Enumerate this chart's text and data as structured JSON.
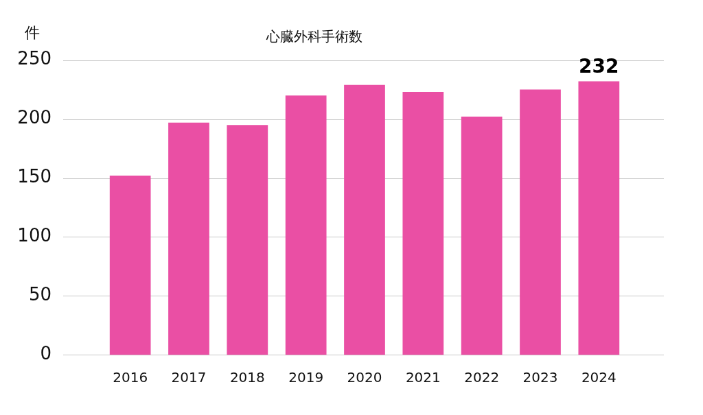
{
  "chart_data": {
    "type": "bar",
    "title": "心臓外科手術数",
    "ylabel": "件",
    "categories": [
      "2016",
      "2017",
      "2018",
      "2019",
      "2020",
      "2021",
      "2022",
      "2023",
      "2024"
    ],
    "values": [
      152,
      197,
      195,
      220,
      229,
      223,
      202,
      225,
      232
    ],
    "color": "#ea4fa4",
    "value_labels": [
      null,
      null,
      null,
      null,
      null,
      null,
      null,
      null,
      "232"
    ],
    "ylim": [
      0,
      250
    ],
    "yticks": [
      0,
      50,
      100,
      150,
      200,
      250
    ],
    "grid": "y"
  }
}
